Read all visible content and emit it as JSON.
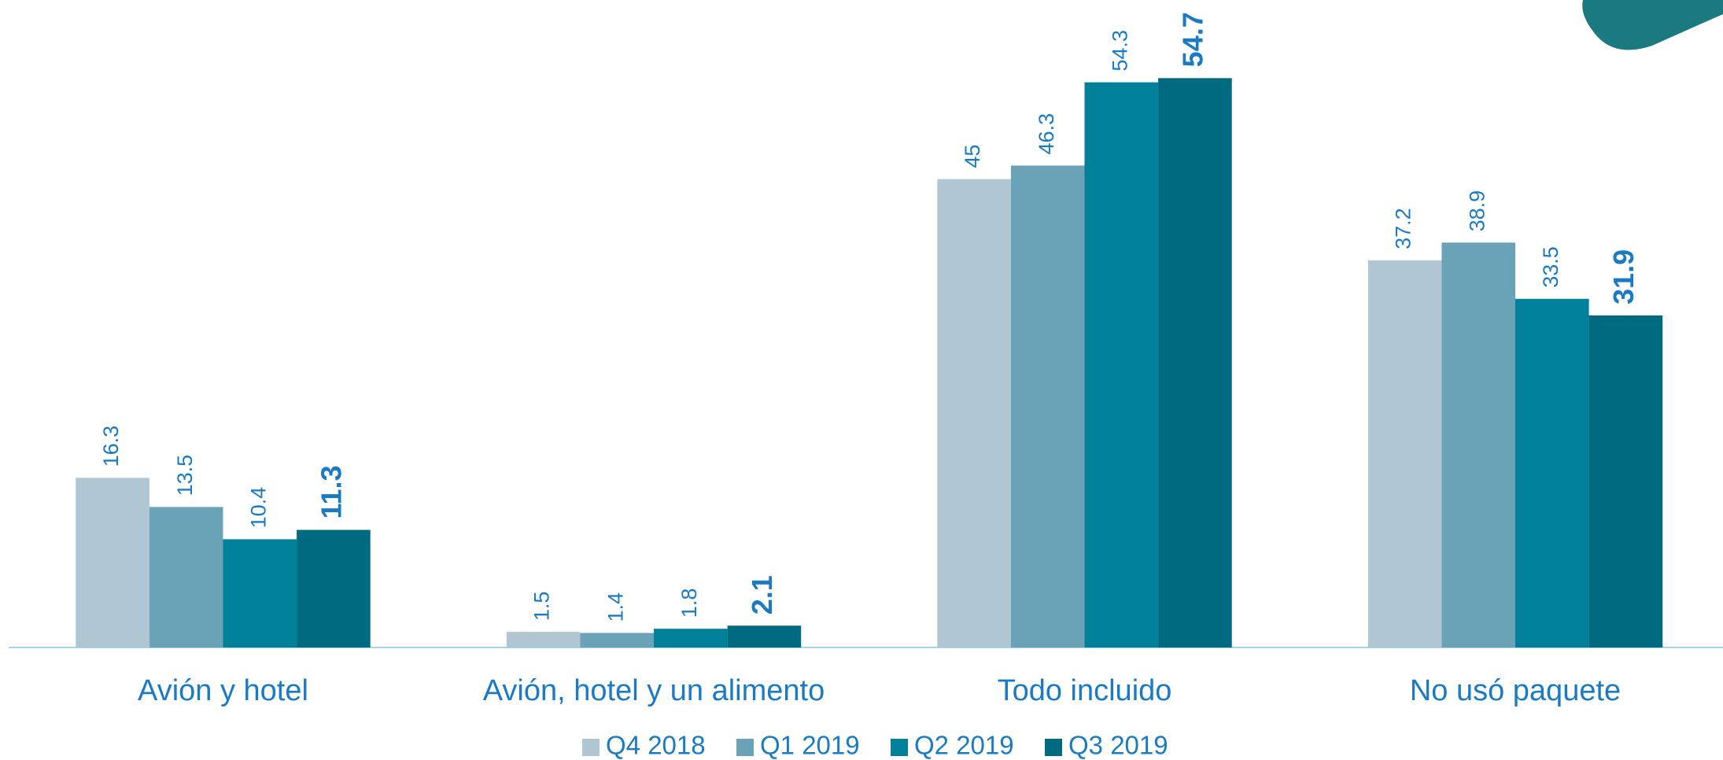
{
  "chart_data": {
    "type": "bar",
    "categories": [
      "Avión y hotel",
      "Avión, hotel y un alimento",
      "Todo incluido",
      "No usó paquete"
    ],
    "series": [
      {
        "name": "Q4 2018",
        "color": "#b0c7d3",
        "values": [
          16.3,
          1.5,
          45,
          37.2
        ]
      },
      {
        "name": "Q1 2019",
        "color": "#6aa3b8",
        "values": [
          13.5,
          1.4,
          46.3,
          38.9
        ]
      },
      {
        "name": "Q2 2019",
        "color": "#008099",
        "values": [
          10.4,
          1.8,
          54.3,
          33.5
        ]
      },
      {
        "name": "Q3 2019",
        "color": "#006a80",
        "values": [
          11.3,
          2.1,
          54.7,
          31.9
        ]
      }
    ],
    "legend": "bottom"
  }
}
